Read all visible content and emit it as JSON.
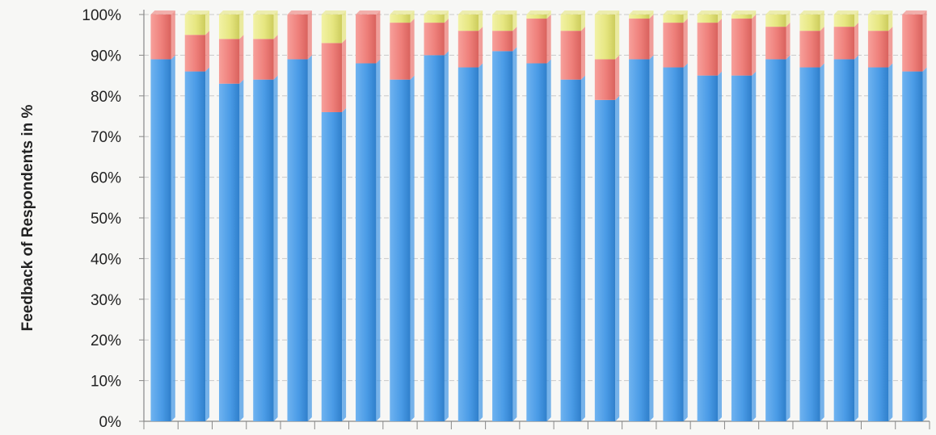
{
  "chart_data": {
    "type": "bar",
    "stacked": true,
    "percent_stacked": true,
    "ylabel": "Feedback of Respondents in %",
    "yticks": [
      "0%",
      "10%",
      "20%",
      "30%",
      "40%",
      "50%",
      "60%",
      "70%",
      "80%",
      "90%",
      "100%"
    ],
    "ylim": [
      0,
      100
    ],
    "grid": true,
    "series": [
      {
        "color": "#4a9be6",
        "values": [
          89,
          86,
          83,
          84,
          89,
          76,
          88,
          84,
          90,
          87,
          91,
          88,
          84,
          79,
          89,
          87,
          85,
          85,
          89,
          87,
          89,
          87,
          86
        ]
      },
      {
        "color": "#ee7f7a",
        "values": [
          11,
          9,
          11,
          10,
          11,
          17,
          12,
          14,
          8,
          9,
          5,
          11,
          12,
          10,
          10,
          11,
          13,
          14,
          8,
          9,
          8,
          9,
          14
        ]
      },
      {
        "color": "#e6e680",
        "values": [
          0,
          5,
          6,
          6,
          0,
          7,
          0,
          2,
          2,
          4,
          4,
          1,
          4,
          11,
          1,
          2,
          2,
          1,
          3,
          4,
          3,
          4,
          0
        ]
      }
    ]
  }
}
